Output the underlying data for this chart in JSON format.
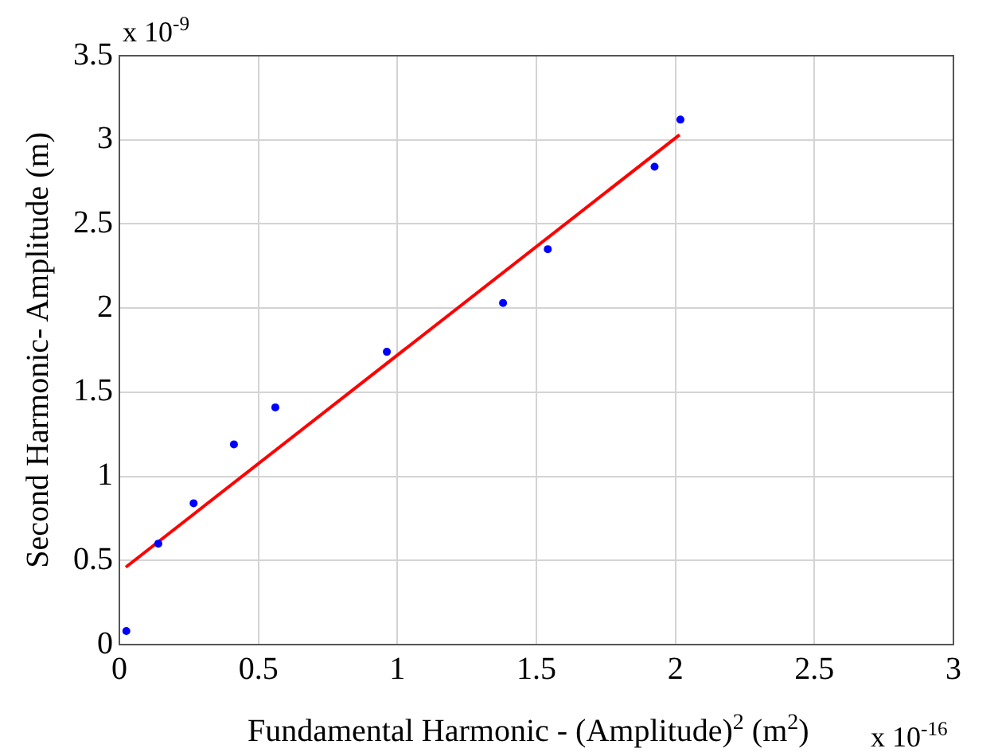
{
  "chart_data": {
    "type": "scatter",
    "xlabel": "Fundamental Harmonic  - (Amplitude)$^{2}$ (m$^{2}$)",
    "ylabel": "Second Harmonic- Amplitude (m)",
    "annotations": [
      "x 10$^{-9}$",
      "x 10$^{-16}$"
    ],
    "xlim": [
      0,
      3
    ],
    "xticks": [
      0,
      0.5,
      1,
      1.5,
      2,
      2.5,
      3
    ],
    "ylim": [
      0,
      3.5
    ],
    "yticks": [
      0,
      0.5,
      1,
      1.5,
      2,
      2.5,
      3,
      3.5
    ],
    "grid": true,
    "marker": "circle",
    "series": [
      {
        "color": "#0000ff",
        "x": [
          0.025,
          0.14,
          0.267,
          0.412,
          0.561,
          0.962,
          1.38,
          1.541,
          1.925,
          2.018
        ],
        "values": [
          0.08,
          0.6,
          0.84,
          1.19,
          1.41,
          1.74,
          2.03,
          2.35,
          2.84,
          3.12
        ]
      },
      {
        "type": "line",
        "color": "#ff0000",
        "marker": "none",
        "x": [
          0.023,
          2.015
        ],
        "values": [
          0.46,
          3.03
        ]
      }
    ]
  }
}
